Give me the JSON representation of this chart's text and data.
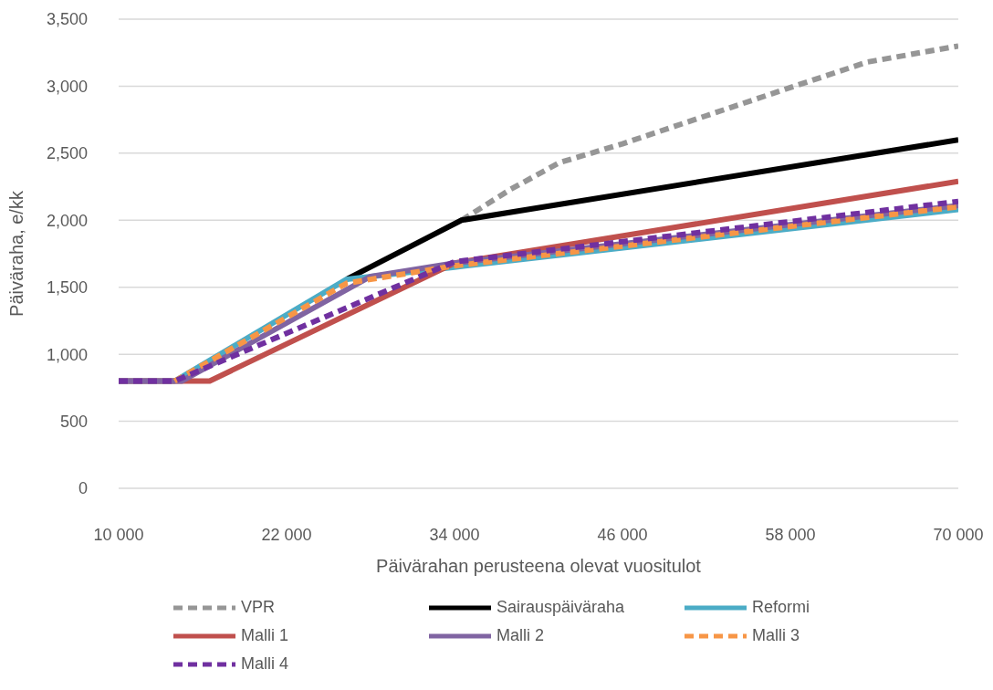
{
  "chart_data": {
    "type": "line",
    "xlabel": "Päivärahan perusteena olevat vuositulot",
    "ylabel": "Päiväraha, e/kk",
    "xlim": [
      10000,
      70000
    ],
    "xticks": [
      {
        "value": 10000,
        "label": "10 000"
      },
      {
        "value": 22000,
        "label": "22 000"
      },
      {
        "value": 34000,
        "label": "34 000"
      },
      {
        "value": 46000,
        "label": "46 000"
      },
      {
        "value": 58000,
        "label": "58 000"
      },
      {
        "value": 70000,
        "label": "70 000"
      }
    ],
    "ylim": [
      0,
      3500
    ],
    "yticks": [
      0,
      500,
      {
        "value": 1000,
        "label": "1,000"
      },
      {
        "value": 1500,
        "label": "1,500"
      },
      {
        "value": 2000,
        "label": "2,000"
      },
      {
        "value": 2500,
        "label": "2,500"
      },
      {
        "value": 3000,
        "label": "3,000"
      },
      {
        "value": 3500,
        "label": "3,500"
      }
    ],
    "grid": "y",
    "legend": "bottom",
    "marker": "none",
    "series": [
      {
        "name": "VPR",
        "color": "#969696",
        "line_style": "dashed",
        "x": [
          34500,
          38000,
          41500,
          46000,
          52000,
          58000,
          63500,
          70000
        ],
        "values": [
          2000,
          2230,
          2430,
          2570,
          2780,
          2990,
          3180,
          3300
        ]
      },
      {
        "name": "Sairauspäiväraha",
        "color": "#000000",
        "line_style": "solid",
        "x": [
          26300,
          34500,
          70000
        ],
        "values": [
          1560,
          2000,
          2600
        ]
      },
      {
        "name": "Reformi",
        "color": "#4bacc6",
        "line_style": "solid",
        "x": [
          10000,
          14000,
          26300,
          34000,
          70000
        ],
        "values": [
          800,
          800,
          1560,
          1650,
          2080
        ]
      },
      {
        "name": "Malli 1",
        "color": "#c0504d",
        "line_style": "solid",
        "x": [
          10000,
          16500,
          34000,
          70000
        ],
        "values": [
          800,
          800,
          1680,
          2290
        ]
      },
      {
        "name": "Malli 2",
        "color": "#8064a2",
        "line_style": "solid",
        "x": [
          10000,
          14500,
          28000,
          34000,
          70000
        ],
        "values": [
          800,
          800,
          1580,
          1680,
          2110
        ]
      },
      {
        "name": "Malli 3",
        "color": "#f79646",
        "line_style": "dashed",
        "x": [
          14000,
          26300,
          34000,
          70000
        ],
        "values": [
          800,
          1530,
          1660,
          2100
        ]
      },
      {
        "name": "Malli 4",
        "color": "#7030a0",
        "line_style": "dashed",
        "x": [
          10000,
          14000,
          34000,
          70000
        ],
        "values": [
          800,
          800,
          1690,
          2140
        ]
      }
    ]
  }
}
